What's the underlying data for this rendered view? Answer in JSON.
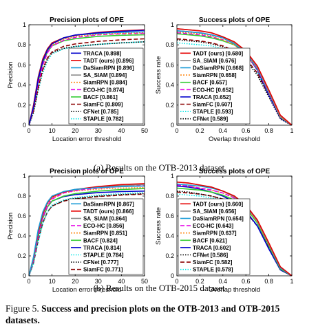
{
  "caption_top": "(a)  Results on the OTB-2013 dataset",
  "caption_bottom": "(b)  Results on the OTB-2015 dataset",
  "figure": {
    "label": "Figure 5.",
    "text": "Success and precision plots on the OTB-2013 and OTB-2015 datasets."
  },
  "style": {
    "TRACA": {
      "color": "#0000cc",
      "dash": ""
    },
    "TADT (ours)": {
      "color": "#e60000",
      "dash": ""
    },
    "DaSiamRPN": {
      "color": "#1a9bd7",
      "dash": ""
    },
    "SA_SIAM": {
      "color": "#8c8c8c",
      "dash": ""
    },
    "SiamRPN": {
      "color": "#ff8c1a",
      "dash": "2,2"
    },
    "ECO-HC": {
      "color": "#e600e6",
      "dash": "6,3"
    },
    "BACF": {
      "color": "#33cc33",
      "dash": ""
    },
    "SiamFC": {
      "color": "#8b0000",
      "dash": "6,3"
    },
    "CFNet": {
      "color": "#000000",
      "dash": "1.5,2"
    },
    "STAPLE": {
      "color": "#00e6e6",
      "dash": "1.5,2"
    }
  },
  "chart_data": [
    {
      "type": "line",
      "kind": "precision",
      "title": "Precision plots of OPE",
      "xlabel": "Location error threshold",
      "ylabel": "Precision",
      "xlim": [
        0,
        50
      ],
      "ylim": [
        0,
        1
      ],
      "xticks": [
        "0",
        "10",
        "20",
        "30",
        "40",
        "50"
      ],
      "yticks": [
        "0",
        "0.2",
        "0.4",
        "0.6",
        "0.8",
        "1"
      ],
      "legend_position": "lower-right",
      "legend": [
        {
          "name": "TRACA",
          "score": "[0.898]"
        },
        {
          "name": "TADT (ours)",
          "score": "[0.896]"
        },
        {
          "name": "DaSiamRPN",
          "score": "[0.896]"
        },
        {
          "name": "SA_SIAM",
          "score": "[0.894]"
        },
        {
          "name": "SiamRPN",
          "score": "[0.884]"
        },
        {
          "name": "ECO-HC",
          "score": "[0.874]"
        },
        {
          "name": "BACF",
          "score": "[0.861]"
        },
        {
          "name": "SiamFC",
          "score": "[0.809]"
        },
        {
          "name": "CFNet",
          "score": "[0.785]"
        },
        {
          "name": "STAPLE",
          "score": "[0.782]"
        }
      ],
      "x": [
        0,
        2,
        4,
        6,
        8,
        10,
        15,
        20,
        30,
        40,
        50
      ],
      "series": [
        {
          "name": "TRACA",
          "values": [
            0,
            0.18,
            0.45,
            0.64,
            0.75,
            0.81,
            0.87,
            0.898,
            0.92,
            0.935,
            0.945
          ]
        },
        {
          "name": "TADT (ours)",
          "values": [
            0,
            0.2,
            0.47,
            0.66,
            0.76,
            0.82,
            0.87,
            0.896,
            0.925,
            0.94,
            0.95
          ]
        },
        {
          "name": "DaSiamRPN",
          "values": [
            0,
            0.2,
            0.48,
            0.66,
            0.76,
            0.82,
            0.87,
            0.896,
            0.915,
            0.925,
            0.93
          ]
        },
        {
          "name": "SA_SIAM",
          "values": [
            0,
            0.19,
            0.46,
            0.65,
            0.75,
            0.81,
            0.865,
            0.894,
            0.92,
            0.935,
            0.945
          ]
        },
        {
          "name": "SiamRPN",
          "values": [
            0,
            0.19,
            0.46,
            0.65,
            0.75,
            0.8,
            0.855,
            0.884,
            0.905,
            0.915,
            0.92
          ]
        },
        {
          "name": "ECO-HC",
          "values": [
            0,
            0.17,
            0.42,
            0.6,
            0.72,
            0.79,
            0.845,
            0.874,
            0.9,
            0.91,
            0.915
          ]
        },
        {
          "name": "BACF",
          "values": [
            0,
            0.17,
            0.43,
            0.62,
            0.73,
            0.79,
            0.84,
            0.861,
            0.885,
            0.895,
            0.9
          ]
        },
        {
          "name": "SiamFC",
          "values": [
            0,
            0.14,
            0.37,
            0.56,
            0.67,
            0.73,
            0.785,
            0.809,
            0.835,
            0.85,
            0.86
          ]
        },
        {
          "name": "CFNet",
          "values": [
            0,
            0.13,
            0.36,
            0.55,
            0.66,
            0.72,
            0.765,
            0.785,
            0.805,
            0.82,
            0.83
          ]
        },
        {
          "name": "STAPLE",
          "values": [
            0,
            0.12,
            0.34,
            0.52,
            0.64,
            0.71,
            0.76,
            0.782,
            0.805,
            0.82,
            0.83
          ]
        }
      ]
    },
    {
      "type": "line",
      "kind": "success",
      "title": "Success plots of OPE",
      "xlabel": "Overlap threshold",
      "ylabel": "Success rate",
      "xlim": [
        0,
        1
      ],
      "ylim": [
        0,
        1
      ],
      "xticks": [
        "0",
        "0.2",
        "0.4",
        "0.6",
        "0.8",
        "1"
      ],
      "yticks": [
        "0",
        "0.2",
        "0.4",
        "0.6",
        "0.8",
        "1"
      ],
      "legend_position": "lower-left",
      "legend": [
        {
          "name": "TADT (ours)",
          "score": "[0.680]"
        },
        {
          "name": "SA_SIAM",
          "score": "[0.676]"
        },
        {
          "name": "DaSiamRPN",
          "score": "[0.668]"
        },
        {
          "name": "SiamRPN",
          "score": "[0.658]"
        },
        {
          "name": "BACF",
          "score": "[0.657]"
        },
        {
          "name": "ECO-HC",
          "score": "[0.652]"
        },
        {
          "name": "TRACA",
          "score": "[0.652]"
        },
        {
          "name": "SiamFC",
          "score": "[0.607]"
        },
        {
          "name": "STAPLE",
          "score": "[0.593]"
        },
        {
          "name": "CFNet",
          "score": "[0.589]"
        }
      ],
      "x": [
        0,
        0.1,
        0.2,
        0.3,
        0.4,
        0.5,
        0.6,
        0.7,
        0.8,
        0.9,
        1.0
      ],
      "series": [
        {
          "name": "TADT (ours)",
          "values": [
            0.96,
            0.95,
            0.94,
            0.92,
            0.88,
            0.83,
            0.74,
            0.59,
            0.35,
            0.1,
            0
          ]
        },
        {
          "name": "SA_SIAM",
          "values": [
            0.96,
            0.95,
            0.94,
            0.92,
            0.88,
            0.82,
            0.73,
            0.58,
            0.34,
            0.09,
            0
          ]
        },
        {
          "name": "DaSiamRPN",
          "values": [
            0.94,
            0.93,
            0.92,
            0.9,
            0.87,
            0.81,
            0.72,
            0.57,
            0.33,
            0.09,
            0
          ]
        },
        {
          "name": "SiamRPN",
          "values": [
            0.93,
            0.92,
            0.91,
            0.89,
            0.85,
            0.8,
            0.71,
            0.56,
            0.32,
            0.08,
            0
          ]
        },
        {
          "name": "BACF",
          "values": [
            0.91,
            0.9,
            0.89,
            0.87,
            0.84,
            0.8,
            0.72,
            0.58,
            0.33,
            0.08,
            0
          ]
        },
        {
          "name": "ECO-HC",
          "values": [
            0.92,
            0.91,
            0.9,
            0.88,
            0.85,
            0.8,
            0.71,
            0.56,
            0.32,
            0.08,
            0
          ]
        },
        {
          "name": "TRACA",
          "values": [
            0.94,
            0.93,
            0.92,
            0.9,
            0.87,
            0.81,
            0.71,
            0.55,
            0.3,
            0.07,
            0
          ]
        },
        {
          "name": "SiamFC",
          "values": [
            0.86,
            0.85,
            0.84,
            0.82,
            0.79,
            0.74,
            0.66,
            0.52,
            0.3,
            0.07,
            0
          ]
        },
        {
          "name": "STAPLE",
          "values": [
            0.82,
            0.81,
            0.8,
            0.79,
            0.76,
            0.72,
            0.65,
            0.52,
            0.3,
            0.07,
            0
          ]
        },
        {
          "name": "CFNet",
          "values": [
            0.85,
            0.84,
            0.83,
            0.81,
            0.78,
            0.72,
            0.64,
            0.5,
            0.28,
            0.06,
            0
          ]
        }
      ]
    },
    {
      "type": "line",
      "kind": "precision",
      "title": "Precision plots of OPE",
      "xlabel": "Location error threshold",
      "ylabel": "Precision",
      "xlim": [
        0,
        50
      ],
      "ylim": [
        0,
        1
      ],
      "xticks": [
        "0",
        "10",
        "20",
        "30",
        "40",
        "50"
      ],
      "yticks": [
        "0",
        "0.2",
        "0.4",
        "0.6",
        "0.8",
        "1"
      ],
      "legend_position": "lower-right",
      "legend": [
        {
          "name": "DaSiamRPN",
          "score": "[0.867]"
        },
        {
          "name": "TADT (ours)",
          "score": "[0.866]"
        },
        {
          "name": "SA_SIAM",
          "score": "[0.864]"
        },
        {
          "name": "ECO-HC",
          "score": "[0.856]"
        },
        {
          "name": "SiamRPN",
          "score": "[0.851]"
        },
        {
          "name": "BACF",
          "score": "[0.824]"
        },
        {
          "name": "TRACA",
          "score": "[0.814]"
        },
        {
          "name": "STAPLE",
          "score": "[0.784]"
        },
        {
          "name": "CFNet",
          "score": "[0.777]"
        },
        {
          "name": "SiamFC",
          "score": "[0.771]"
        }
      ],
      "x": [
        0,
        2,
        4,
        6,
        8,
        10,
        15,
        20,
        30,
        40,
        50
      ],
      "series": [
        {
          "name": "DaSiamRPN",
          "values": [
            0,
            0.19,
            0.46,
            0.64,
            0.74,
            0.8,
            0.845,
            0.867,
            0.885,
            0.895,
            0.9
          ]
        },
        {
          "name": "TADT (ours)",
          "values": [
            0,
            0.18,
            0.44,
            0.62,
            0.73,
            0.79,
            0.84,
            0.866,
            0.895,
            0.915,
            0.925
          ]
        },
        {
          "name": "SA_SIAM",
          "values": [
            0,
            0.18,
            0.44,
            0.62,
            0.73,
            0.79,
            0.84,
            0.864,
            0.89,
            0.905,
            0.915
          ]
        },
        {
          "name": "ECO-HC",
          "values": [
            0,
            0.16,
            0.4,
            0.59,
            0.7,
            0.77,
            0.83,
            0.856,
            0.88,
            0.895,
            0.905
          ]
        },
        {
          "name": "SiamRPN",
          "values": [
            0,
            0.18,
            0.44,
            0.62,
            0.72,
            0.78,
            0.83,
            0.851,
            0.87,
            0.88,
            0.885
          ]
        },
        {
          "name": "BACF",
          "values": [
            0,
            0.16,
            0.4,
            0.58,
            0.69,
            0.75,
            0.8,
            0.824,
            0.85,
            0.865,
            0.875
          ]
        },
        {
          "name": "TRACA",
          "values": [
            0,
            0.16,
            0.4,
            0.58,
            0.69,
            0.75,
            0.795,
            0.814,
            0.835,
            0.845,
            0.85
          ]
        },
        {
          "name": "STAPLE",
          "values": [
            0,
            0.12,
            0.34,
            0.52,
            0.64,
            0.71,
            0.76,
            0.784,
            0.81,
            0.825,
            0.835
          ]
        },
        {
          "name": "CFNet",
          "values": [
            0,
            0.13,
            0.35,
            0.53,
            0.64,
            0.7,
            0.755,
            0.777,
            0.8,
            0.815,
            0.825
          ]
        },
        {
          "name": "SiamFC",
          "values": [
            0,
            0.13,
            0.35,
            0.53,
            0.64,
            0.7,
            0.75,
            0.771,
            0.795,
            0.81,
            0.82
          ]
        }
      ]
    },
    {
      "type": "line",
      "kind": "success",
      "title": "Success plots of OPE",
      "xlabel": "Overlap threshold",
      "ylabel": "Success rate",
      "xlim": [
        0,
        1
      ],
      "ylim": [
        0,
        1
      ],
      "xticks": [
        "0",
        "0.2",
        "0.4",
        "0.6",
        "0.8",
        "1"
      ],
      "yticks": [
        "0",
        "0.2",
        "0.4",
        "0.6",
        "0.8",
        "1"
      ],
      "legend_position": "lower-left",
      "legend": [
        {
          "name": "TADT (ours)",
          "score": "[0.660]"
        },
        {
          "name": "SA_SIAM",
          "score": "[0.656]"
        },
        {
          "name": "DaSiamRPN",
          "score": "[0.654]"
        },
        {
          "name": "ECO-HC",
          "score": "[0.643]"
        },
        {
          "name": "SiamRPN",
          "score": "[0.637]"
        },
        {
          "name": "BACF",
          "score": "[0.621]"
        },
        {
          "name": "TRACA",
          "score": "[0.602]"
        },
        {
          "name": "CFNet",
          "score": "[0.586]"
        },
        {
          "name": "SiamFC",
          "score": "[0.582]"
        },
        {
          "name": "STAPLE",
          "score": "[0.578]"
        }
      ],
      "x": [
        0,
        0.1,
        0.2,
        0.3,
        0.4,
        0.5,
        0.6,
        0.7,
        0.8,
        0.9,
        1.0
      ],
      "series": [
        {
          "name": "TADT (ours)",
          "values": [
            0.94,
            0.93,
            0.91,
            0.89,
            0.85,
            0.8,
            0.71,
            0.56,
            0.33,
            0.09,
            0
          ]
        },
        {
          "name": "SA_SIAM",
          "values": [
            0.94,
            0.93,
            0.91,
            0.89,
            0.85,
            0.79,
            0.7,
            0.55,
            0.32,
            0.09,
            0
          ]
        },
        {
          "name": "DaSiamRPN",
          "values": [
            0.92,
            0.91,
            0.9,
            0.88,
            0.85,
            0.8,
            0.71,
            0.56,
            0.32,
            0.08,
            0
          ]
        },
        {
          "name": "ECO-HC",
          "values": [
            0.91,
            0.9,
            0.88,
            0.86,
            0.83,
            0.78,
            0.7,
            0.55,
            0.32,
            0.08,
            0
          ]
        },
        {
          "name": "SiamRPN",
          "values": [
            0.91,
            0.9,
            0.88,
            0.86,
            0.83,
            0.78,
            0.69,
            0.54,
            0.31,
            0.08,
            0
          ]
        },
        {
          "name": "BACF",
          "values": [
            0.88,
            0.87,
            0.86,
            0.84,
            0.81,
            0.76,
            0.68,
            0.53,
            0.3,
            0.07,
            0
          ]
        },
        {
          "name": "TRACA",
          "values": [
            0.9,
            0.89,
            0.87,
            0.84,
            0.8,
            0.74,
            0.65,
            0.5,
            0.27,
            0.06,
            0
          ]
        },
        {
          "name": "CFNet",
          "values": [
            0.85,
            0.84,
            0.82,
            0.8,
            0.77,
            0.72,
            0.64,
            0.5,
            0.28,
            0.06,
            0
          ]
        },
        {
          "name": "SiamFC",
          "values": [
            0.84,
            0.83,
            0.82,
            0.8,
            0.77,
            0.72,
            0.64,
            0.5,
            0.28,
            0.06,
            0
          ]
        },
        {
          "name": "STAPLE",
          "values": [
            0.82,
            0.81,
            0.8,
            0.78,
            0.76,
            0.71,
            0.64,
            0.51,
            0.29,
            0.07,
            0
          ]
        }
      ]
    }
  ]
}
